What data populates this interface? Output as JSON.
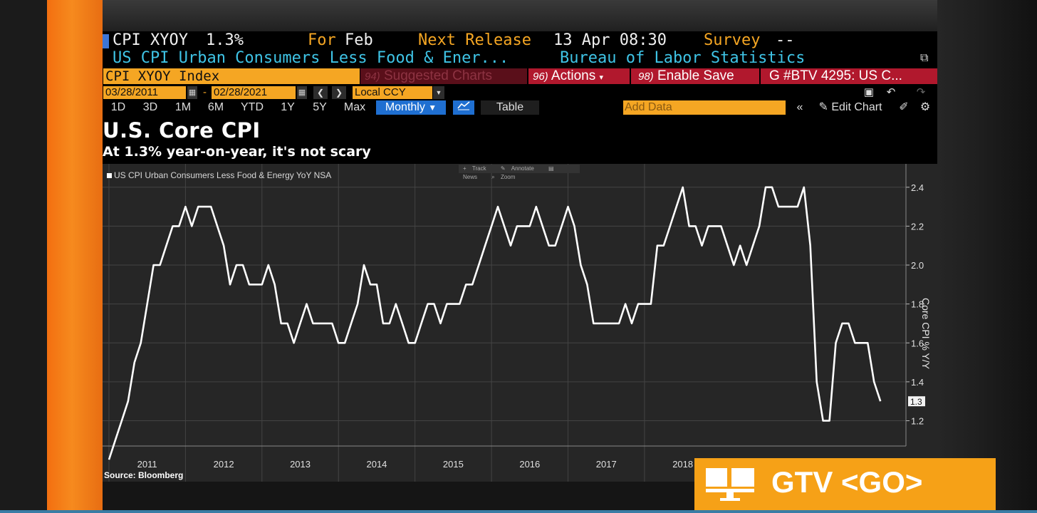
{
  "header": {
    "ticker": "CPI XYOY",
    "last_value": "1.3%",
    "for_label": "For",
    "for_value": "Feb",
    "next_release_label": "Next Release",
    "next_release_value": "13 Apr 08:30",
    "survey_label": "Survey",
    "survey_value": "--",
    "description": "US CPI Urban Consumers Less Food & Ener...",
    "source_org": "Bureau of Labor Statistics"
  },
  "toolbar": {
    "ticker_field": "CPI XYOY Index",
    "suggested_num": "94)",
    "suggested_label": "Suggested Charts",
    "actions_num": "96)",
    "actions_label": "Actions",
    "save_num": "98)",
    "save_label": "Enable Save",
    "btv_label": "G #BTV 4295: US C...",
    "start_date": "03/28/2011",
    "date_separator": "-",
    "end_date": "02/28/2021",
    "currency": "Local CCY",
    "periods": [
      "1D",
      "3D",
      "1M",
      "6M",
      "YTD",
      "1Y",
      "5Y",
      "Max"
    ],
    "frequency": "Monthly",
    "table_label": "Table",
    "add_data_placeholder": "Add Data",
    "edit_chart_label": "Edit Chart"
  },
  "plot_tools": [
    "Track",
    "Annotate",
    "News",
    "Zoom"
  ],
  "source_text": "Source: Bloomberg",
  "gtv_text": "GTV <GO>",
  "colors": {
    "orange": "#f5a623",
    "blue": "#1f6fd1",
    "red": "#b1182d",
    "line": "#ffffff"
  },
  "chart_data": {
    "type": "line",
    "title": "U.S. Core CPI",
    "subtitle": "At 1.3% year-on-year, it's not scary",
    "ylabel": "Core CPI % Y/Y",
    "ylim": [
      1.07,
      2.52
    ],
    "yticks": [
      1.2,
      1.4,
      1.6,
      1.8,
      2.0,
      2.2,
      2.4
    ],
    "xlim": [
      "2010-12-01",
      "2021-06-01"
    ],
    "x_tick_labels": [
      "2011",
      "2012",
      "2013",
      "2014",
      "2015",
      "2016",
      "2017",
      "2018"
    ],
    "last_value_label": "1.3",
    "grid": true,
    "legend": "top-left",
    "series": [
      {
        "name": "US CPI Urban Consumers Less Food & Energy YoY NSA",
        "x": [
          "2011-01",
          "2011-02",
          "2011-03",
          "2011-04",
          "2011-05",
          "2011-06",
          "2011-07",
          "2011-08",
          "2011-09",
          "2011-10",
          "2011-11",
          "2011-12",
          "2012-01",
          "2012-02",
          "2012-03",
          "2012-04",
          "2012-05",
          "2012-06",
          "2012-07",
          "2012-08",
          "2012-09",
          "2012-10",
          "2012-11",
          "2012-12",
          "2013-01",
          "2013-02",
          "2013-03",
          "2013-04",
          "2013-05",
          "2013-06",
          "2013-07",
          "2013-08",
          "2013-09",
          "2013-10",
          "2013-11",
          "2013-12",
          "2014-01",
          "2014-02",
          "2014-03",
          "2014-04",
          "2014-05",
          "2014-06",
          "2014-07",
          "2014-08",
          "2014-09",
          "2014-10",
          "2014-11",
          "2014-12",
          "2015-01",
          "2015-02",
          "2015-03",
          "2015-04",
          "2015-05",
          "2015-06",
          "2015-07",
          "2015-08",
          "2015-09",
          "2015-10",
          "2015-11",
          "2015-12",
          "2016-01",
          "2016-02",
          "2016-03",
          "2016-04",
          "2016-05",
          "2016-06",
          "2016-07",
          "2016-08",
          "2016-09",
          "2016-10",
          "2016-11",
          "2016-12",
          "2017-01",
          "2017-02",
          "2017-03",
          "2017-04",
          "2017-05",
          "2017-06",
          "2017-07",
          "2017-08",
          "2017-09",
          "2017-10",
          "2017-11",
          "2017-12",
          "2018-01",
          "2018-02",
          "2018-03",
          "2018-04",
          "2018-05",
          "2018-06",
          "2018-07",
          "2018-08",
          "2018-09",
          "2018-10",
          "2018-11",
          "2018-12",
          "2019-01",
          "2019-02",
          "2019-03",
          "2019-04",
          "2019-05",
          "2019-06",
          "2019-07",
          "2019-08",
          "2019-09",
          "2019-10",
          "2019-11",
          "2019-12",
          "2020-01",
          "2020-02",
          "2020-03",
          "2020-04",
          "2020-05",
          "2020-06",
          "2020-07",
          "2020-08",
          "2020-09",
          "2020-10",
          "2020-11",
          "2020-12",
          "2021-01",
          "2021-02"
        ],
        "values": [
          1.0,
          1.1,
          1.2,
          1.3,
          1.5,
          1.6,
          1.8,
          2.0,
          2.0,
          2.1,
          2.2,
          2.2,
          2.3,
          2.2,
          2.3,
          2.3,
          2.3,
          2.2,
          2.1,
          1.9,
          2.0,
          2.0,
          1.9,
          1.9,
          1.9,
          2.0,
          1.9,
          1.7,
          1.7,
          1.6,
          1.7,
          1.8,
          1.7,
          1.7,
          1.7,
          1.7,
          1.6,
          1.6,
          1.7,
          1.8,
          2.0,
          1.9,
          1.9,
          1.7,
          1.7,
          1.8,
          1.7,
          1.6,
          1.6,
          1.7,
          1.8,
          1.8,
          1.7,
          1.8,
          1.8,
          1.8,
          1.9,
          1.9,
          2.0,
          2.1,
          2.2,
          2.3,
          2.2,
          2.1,
          2.2,
          2.2,
          2.2,
          2.3,
          2.2,
          2.1,
          2.1,
          2.2,
          2.3,
          2.2,
          2.0,
          1.9,
          1.7,
          1.7,
          1.7,
          1.7,
          1.7,
          1.8,
          1.7,
          1.8,
          1.8,
          1.8,
          2.1,
          2.1,
          2.2,
          2.3,
          2.4,
          2.2,
          2.2,
          2.1,
          2.2,
          2.2,
          2.2,
          2.1,
          2.0,
          2.1,
          2.0,
          2.1,
          2.2,
          2.4,
          2.4,
          2.3,
          2.3,
          2.3,
          2.3,
          2.4,
          2.1,
          1.4,
          1.2,
          1.2,
          1.6,
          1.7,
          1.7,
          1.6,
          1.6,
          1.6,
          1.4,
          1.3
        ]
      }
    ]
  }
}
